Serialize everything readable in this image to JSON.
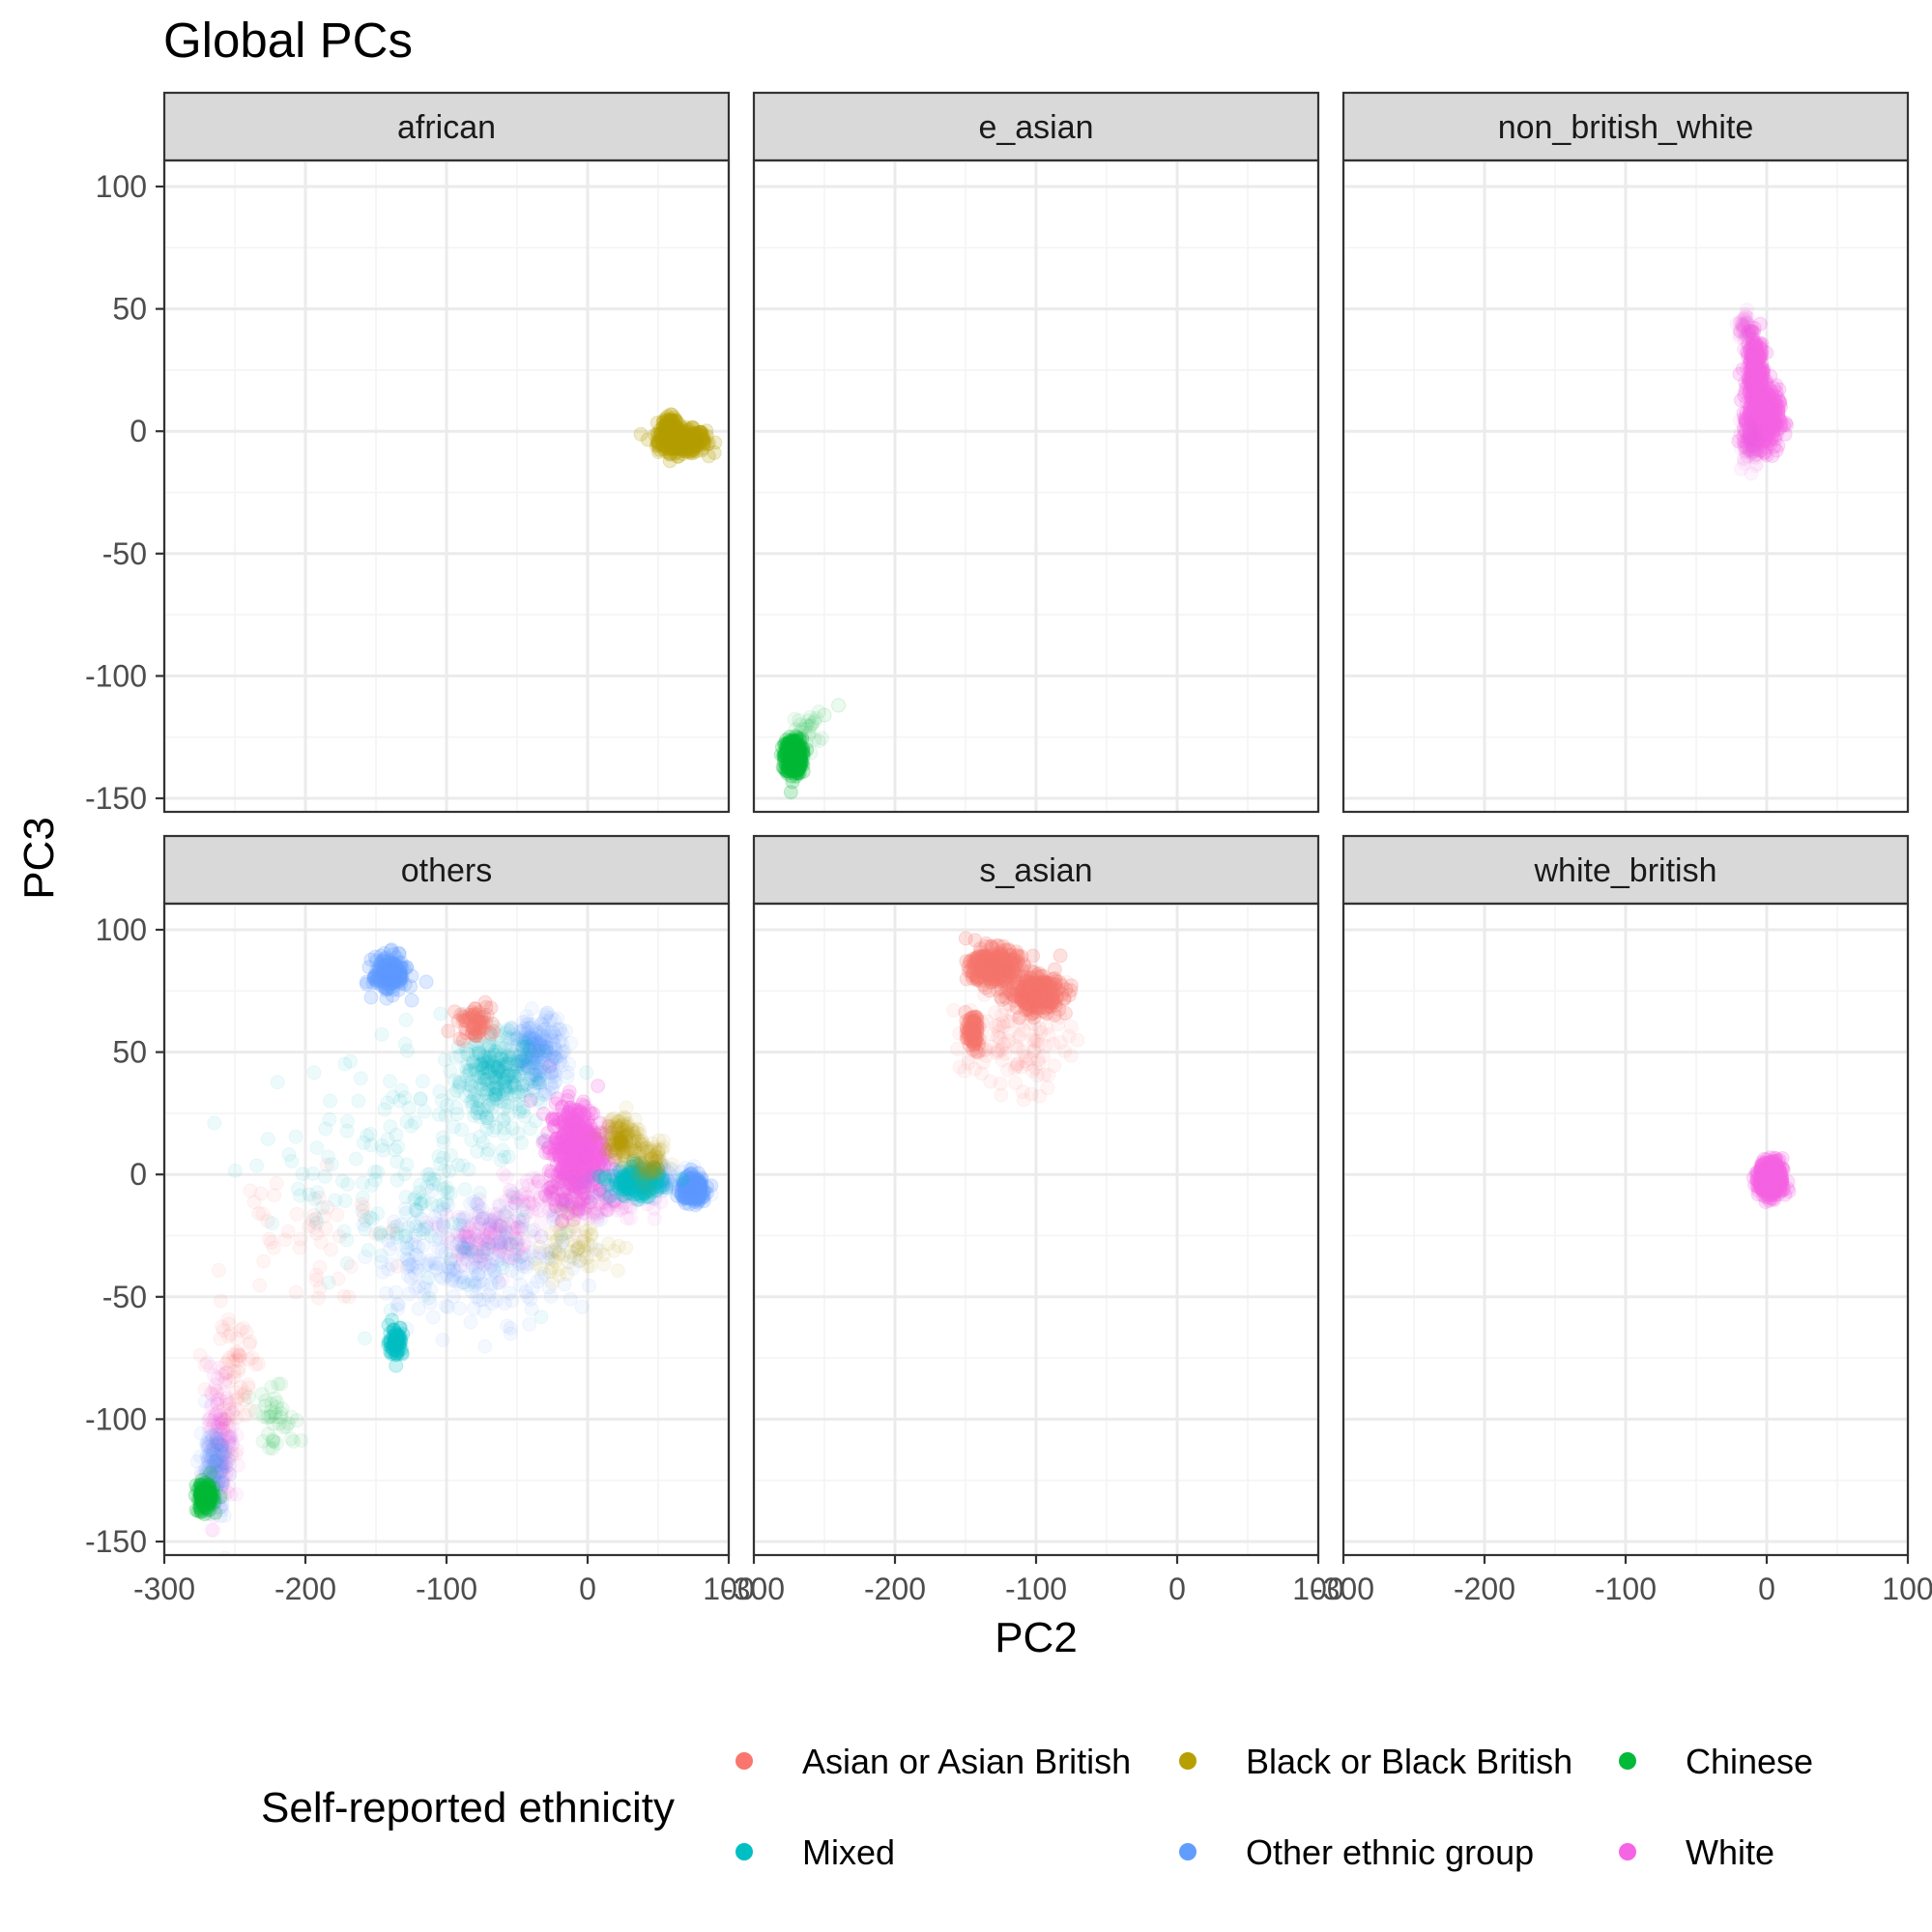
{
  "figure": {
    "title": "Global PCs",
    "xlabel": "PC2",
    "ylabel": "PC3"
  },
  "legend": {
    "title": "Self-reported ethnicity",
    "placement": "bottom",
    "entries": [
      {
        "label": "Asian or Asian British",
        "color": "#F8766D"
      },
      {
        "label": "Black or Black British",
        "color": "#B79F00"
      },
      {
        "label": "Chinese",
        "color": "#00BA38"
      },
      {
        "label": "Mixed",
        "color": "#00BFC4"
      },
      {
        "label": "Other ethnic group",
        "color": "#619CFF"
      },
      {
        "label": "White",
        "color": "#F564E3"
      }
    ]
  },
  "chart_data": {
    "type": "scatter",
    "facet_by": "population cluster",
    "grid": true,
    "xlim": [
      -300,
      100
    ],
    "ylim": [
      -150,
      100
    ],
    "xticks": [
      -300,
      -200,
      -100,
      0,
      100
    ],
    "yticks": [
      100,
      50,
      0,
      -50,
      -100,
      -150
    ],
    "xtick_labels": [
      "-300",
      "-200",
      "-100",
      "0",
      "100"
    ],
    "ytick_labels": [
      "100",
      "50",
      "0",
      "-50",
      "-100",
      "-150"
    ],
    "point_alpha": 0.05,
    "panels": [
      {
        "label": "african",
        "clusters": [
          {
            "group": "Black or Black British",
            "cx": 67,
            "cy": -4,
            "rx": 14,
            "ry": 4,
            "n": 400,
            "dense": true
          },
          {
            "group": "Black or Black British",
            "cx": 58,
            "cy": 1,
            "rx": 5,
            "ry": 4,
            "n": 120,
            "dense": true
          }
        ]
      },
      {
        "label": "e_asian",
        "clusters": [
          {
            "group": "Chinese",
            "cx": -272,
            "cy": -133,
            "rx": 5,
            "ry": 6,
            "n": 400,
            "dense": true
          },
          {
            "group": "Chinese",
            "cx": -262,
            "cy": -122,
            "rx": 8,
            "ry": 6,
            "n": 25,
            "dense": false
          }
        ],
        "points": [
          {
            "group": "Chinese",
            "x": -240,
            "y": -112
          },
          {
            "group": "Chinese",
            "x": -250,
            "y": -116
          }
        ]
      },
      {
        "label": "non_british_white",
        "clusters": [
          {
            "group": "White",
            "cx": -8,
            "cy": 22,
            "rx": 5,
            "ry": 14,
            "n": 300,
            "dense": true
          },
          {
            "group": "White",
            "cx": -2,
            "cy": 5,
            "rx": 9,
            "ry": 10,
            "n": 400,
            "dense": true
          },
          {
            "group": "White",
            "cx": -15,
            "cy": 42,
            "rx": 4,
            "ry": 6,
            "n": 50,
            "dense": false
          },
          {
            "group": "White",
            "cx": -12,
            "cy": -5,
            "rx": 6,
            "ry": 8,
            "n": 80,
            "dense": false
          }
        ]
      },
      {
        "label": "others",
        "clusters": [
          {
            "group": "White",
            "cx": -8,
            "cy": 10,
            "rx": 16,
            "ry": 16,
            "n": 500,
            "dense": true
          },
          {
            "group": "White",
            "cx": -10,
            "cy": -10,
            "rx": 40,
            "ry": 8,
            "n": 200,
            "dense": false
          },
          {
            "group": "White",
            "cx": -70,
            "cy": -25,
            "rx": 25,
            "ry": 10,
            "n": 150,
            "dense": false
          },
          {
            "group": "White",
            "cx": -260,
            "cy": -110,
            "rx": 8,
            "ry": 25,
            "n": 150,
            "dense": false
          },
          {
            "group": "Other ethnic group",
            "cx": 75,
            "cy": -6,
            "rx": 7,
            "ry": 4,
            "n": 250,
            "dense": true
          },
          {
            "group": "Other ethnic group",
            "cx": 40,
            "cy": -3,
            "rx": 25,
            "ry": 5,
            "n": 200,
            "dense": false
          },
          {
            "group": "Other ethnic group",
            "cx": -140,
            "cy": 82,
            "rx": 10,
            "ry": 6,
            "n": 200,
            "dense": true
          },
          {
            "group": "Other ethnic group",
            "cx": -35,
            "cy": 50,
            "rx": 15,
            "ry": 12,
            "n": 250,
            "dense": false
          },
          {
            "group": "Other ethnic group",
            "cx": -80,
            "cy": -35,
            "rx": 60,
            "ry": 20,
            "n": 250,
            "dense": false
          },
          {
            "group": "Other ethnic group",
            "cx": -265,
            "cy": -120,
            "rx": 8,
            "ry": 15,
            "n": 150,
            "dense": false
          },
          {
            "group": "Mixed",
            "cx": -65,
            "cy": 40,
            "rx": 25,
            "ry": 15,
            "n": 300,
            "dense": false
          },
          {
            "group": "Mixed",
            "cx": -136,
            "cy": -68,
            "rx": 4,
            "ry": 5,
            "n": 80,
            "dense": true
          },
          {
            "group": "Mixed",
            "cx": -120,
            "cy": 0,
            "rx": 80,
            "ry": 40,
            "n": 200,
            "dense": false
          },
          {
            "group": "Mixed",
            "cx": 35,
            "cy": -3,
            "rx": 15,
            "ry": 5,
            "n": 150,
            "dense": true
          },
          {
            "group": "Chinese",
            "cx": -271,
            "cy": -132,
            "rx": 5,
            "ry": 5,
            "n": 150,
            "dense": true
          },
          {
            "group": "Chinese",
            "cx": -220,
            "cy": -100,
            "rx": 15,
            "ry": 10,
            "n": 40,
            "dense": false
          },
          {
            "group": "Black or Black British",
            "cx": 25,
            "cy": 15,
            "rx": 10,
            "ry": 8,
            "n": 150,
            "dense": false
          },
          {
            "group": "Black or Black British",
            "cx": 45,
            "cy": 5,
            "rx": 10,
            "ry": 6,
            "n": 80,
            "dense": false
          },
          {
            "group": "Black or Black British",
            "cx": -10,
            "cy": -30,
            "rx": 30,
            "ry": 10,
            "n": 60,
            "dense": false
          },
          {
            "group": "Asian or Asian British",
            "cx": -80,
            "cy": 62,
            "rx": 10,
            "ry": 6,
            "n": 60,
            "dense": true
          },
          {
            "group": "Asian or Asian British",
            "cx": -250,
            "cy": -80,
            "rx": 15,
            "ry": 20,
            "n": 60,
            "dense": false
          },
          {
            "group": "Asian or Asian British",
            "cx": -200,
            "cy": -20,
            "rx": 40,
            "ry": 25,
            "n": 50,
            "dense": false
          }
        ]
      },
      {
        "label": "s_asian",
        "clusters": [
          {
            "group": "Asian or Asian British",
            "cx": -130,
            "cy": 85,
            "rx": 14,
            "ry": 6,
            "n": 300,
            "dense": true
          },
          {
            "group": "Asian or Asian British",
            "cx": -100,
            "cy": 74,
            "rx": 15,
            "ry": 6,
            "n": 300,
            "dense": true
          },
          {
            "group": "Asian or Asian British",
            "cx": -145,
            "cy": 58,
            "rx": 4,
            "ry": 6,
            "n": 80,
            "dense": true
          },
          {
            "group": "Asian or Asian British",
            "cx": -115,
            "cy": 55,
            "rx": 30,
            "ry": 18,
            "n": 120,
            "dense": false
          }
        ]
      },
      {
        "label": "white_british",
        "clusters": [
          {
            "group": "White",
            "cx": 3,
            "cy": -2,
            "rx": 7,
            "ry": 6,
            "n": 500,
            "dense": true
          }
        ]
      }
    ]
  }
}
